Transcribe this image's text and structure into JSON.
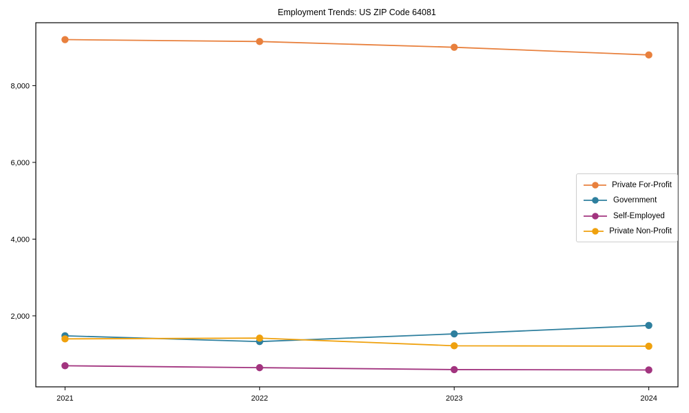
{
  "chart_data": {
    "type": "line",
    "title": "Employment Trends: US ZIP Code 64081",
    "x": [
      2021,
      2022,
      2023,
      2024
    ],
    "x_tick_labels": [
      "2021",
      "2022",
      "2023",
      "2024"
    ],
    "y_ticks": [
      2000,
      4000,
      6000,
      8000
    ],
    "y_tick_labels": [
      "2,000",
      "4,000",
      "6,000",
      "8,000"
    ],
    "xlabel": "",
    "ylabel": "",
    "xlim": [
      2020.85,
      2024.15
    ],
    "ylim": [
      150,
      9640
    ],
    "grid": false,
    "legend_position": "center right",
    "series": [
      {
        "name": "Private For-Profit",
        "color": "#E8803D",
        "values": [
          9200,
          9150,
          9000,
          8800
        ]
      },
      {
        "name": "Government",
        "color": "#2E7F9E",
        "values": [
          1480,
          1330,
          1530,
          1750
        ]
      },
      {
        "name": "Self-Employed",
        "color": "#A2347F",
        "values": [
          700,
          650,
          600,
          590
        ]
      },
      {
        "name": "Private Non-Profit",
        "color": "#EFA10E",
        "values": [
          1400,
          1420,
          1220,
          1210
        ]
      }
    ]
  }
}
